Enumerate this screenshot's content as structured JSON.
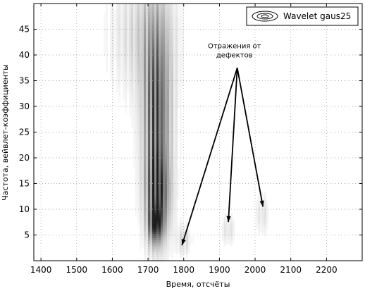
{
  "chart_data": {
    "type": "heatmap",
    "title": "",
    "xlabel": "Время, отсчёты",
    "ylabel": "Частота, вейвлет-коэффициенты",
    "xlim": [
      1380,
      2300
    ],
    "ylim": [
      0,
      50
    ],
    "xticks": [
      1400,
      1500,
      1600,
      1700,
      1800,
      1900,
      2000,
      2100,
      2200
    ],
    "yticks": [
      5,
      10,
      15,
      20,
      25,
      30,
      35,
      40,
      45
    ],
    "grid": true,
    "legend": {
      "position": "top-right",
      "entries": [
        "Wavelet gaus25"
      ]
    },
    "annotation": {
      "text_lines": [
        "Отражения от",
        "дефектов"
      ],
      "source": {
        "x": 1950,
        "y": 37.5
      },
      "targets": [
        {
          "x": 1795,
          "y": 3
        },
        {
          "x": 1925,
          "y": 7.5
        },
        {
          "x": 2022,
          "y": 10.5
        }
      ]
    },
    "series": [
      {
        "center_x": 1725,
        "center_y": 28,
        "spread_x": 26,
        "spread_y": 13,
        "oscillation_period_x": 11,
        "intensity": 1.0
      },
      {
        "center_x": 1728,
        "center_y": 13,
        "spread_x": 22,
        "spread_y": 5,
        "oscillation_period_x": 12,
        "intensity": 0.8
      },
      {
        "center_x": 1722,
        "center_y": 7,
        "spread_x": 14,
        "spread_y": 2.5,
        "oscillation_period_x": 10,
        "intensity": 0.9
      },
      {
        "center_x": 1690,
        "center_y": 44,
        "spread_x": 60,
        "spread_y": 8,
        "oscillation_period_x": 18,
        "intensity": 0.25
      },
      {
        "center_x": 1800,
        "center_y": 4,
        "spread_x": 14,
        "spread_y": 2,
        "oscillation_period_x": 9,
        "intensity": 0.22
      },
      {
        "center_x": 1925,
        "center_y": 6,
        "spread_x": 10,
        "spread_y": 2,
        "oscillation_period_x": 8,
        "intensity": 0.2
      },
      {
        "center_x": 2020,
        "center_y": 9,
        "spread_x": 10,
        "spread_y": 2.5,
        "oscillation_period_x": 8,
        "intensity": 0.2
      }
    ]
  }
}
